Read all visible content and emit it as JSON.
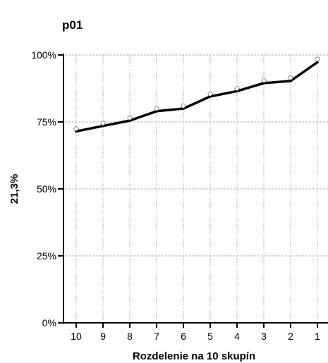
{
  "chart_data": {
    "type": "line",
    "title": "p01",
    "xlabel": "Rozdelenie na 10 skupín",
    "ylabel": "21,3%",
    "categories": [
      "10",
      "9",
      "8",
      "7",
      "6",
      "5",
      "4",
      "3",
      "2",
      "1"
    ],
    "ylim": [
      0,
      100
    ],
    "yticks": [
      0,
      25,
      50,
      75,
      100
    ],
    "ytick_labels": [
      "0%",
      "25%",
      "50%",
      "75%",
      "100%"
    ],
    "grid": true,
    "series": [
      {
        "values": [
          71.5,
          73.5,
          75.5,
          79,
          80,
          84.5,
          86.5,
          89.5,
          90.3,
          97.3
        ],
        "style": "line"
      },
      {
        "values": [
          72.5,
          74.5,
          76.5,
          80,
          81,
          85.5,
          87.5,
          90.5,
          91.5,
          98.5
        ],
        "style": "markers"
      }
    ],
    "colors": {
      "line": "#000000",
      "marker": "#333333",
      "grid": "#9a9a9a"
    }
  }
}
